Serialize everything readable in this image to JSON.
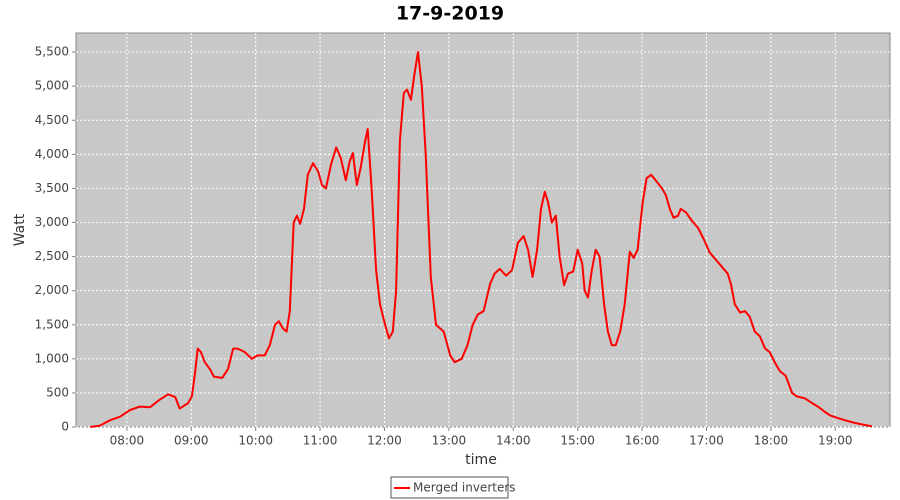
{
  "chart_data": {
    "type": "line",
    "title": "17-9-2019",
    "x_label": "time",
    "y_label": "Watt",
    "x": [
      7.43,
      7.58,
      7.74,
      7.89,
      8.05,
      8.2,
      8.36,
      8.51,
      8.64,
      8.75,
      8.82,
      8.9,
      8.95,
      9.01,
      9.06,
      9.1,
      9.15,
      9.21,
      9.29,
      9.35,
      9.48,
      9.57,
      9.65,
      9.72,
      9.83,
      9.94,
      10.03,
      10.14,
      10.22,
      10.3,
      10.36,
      10.42,
      10.48,
      10.53,
      10.59,
      10.64,
      10.69,
      10.75,
      10.81,
      10.89,
      10.97,
      11.03,
      11.09,
      11.17,
      11.25,
      11.32,
      11.4,
      11.46,
      11.51,
      11.57,
      11.63,
      11.7,
      11.74,
      11.8,
      11.87,
      11.93,
      12.01,
      12.07,
      12.13,
      12.18,
      12.24,
      12.3,
      12.35,
      12.41,
      12.47,
      12.52,
      12.58,
      12.64,
      12.72,
      12.8,
      12.86,
      12.92,
      13.02,
      13.09,
      13.2,
      13.29,
      13.37,
      13.45,
      13.54,
      13.64,
      13.71,
      13.79,
      13.89,
      13.98,
      14.07,
      14.16,
      14.23,
      14.3,
      14.37,
      14.43,
      14.49,
      14.54,
      14.6,
      14.66,
      14.72,
      14.79,
      14.85,
      14.93,
      15.0,
      15.07,
      15.11,
      15.16,
      15.22,
      15.28,
      15.34,
      15.41,
      15.47,
      15.53,
      15.59,
      15.66,
      15.73,
      15.81,
      15.87,
      15.93,
      16.01,
      16.07,
      16.14,
      16.21,
      16.31,
      16.37,
      16.43,
      16.49,
      16.56,
      16.6,
      16.68,
      16.77,
      16.87,
      16.96,
      17.05,
      17.15,
      17.24,
      17.33,
      17.38,
      17.44,
      17.52,
      17.6,
      17.67,
      17.75,
      17.83,
      17.91,
      17.98,
      18.06,
      18.14,
      18.23,
      18.33,
      18.4,
      18.53,
      18.64,
      18.73,
      18.84,
      18.92,
      19.04,
      19.15,
      19.3,
      19.46,
      19.57
    ],
    "series": [
      {
        "name": "Merged inverters",
        "color": "#ff0000",
        "values": [
          0,
          20,
          100,
          150,
          250,
          300,
          290,
          400,
          480,
          440,
          270,
          320,
          350,
          450,
          800,
          1150,
          1100,
          950,
          850,
          740,
          720,
          850,
          1150,
          1150,
          1100,
          1000,
          1050,
          1050,
          1200,
          1500,
          1550,
          1450,
          1400,
          1700,
          3000,
          3100,
          2980,
          3200,
          3700,
          3870,
          3750,
          3550,
          3500,
          3850,
          4100,
          3950,
          3620,
          3900,
          4020,
          3550,
          3800,
          4200,
          4370,
          3500,
          2300,
          1800,
          1500,
          1300,
          1400,
          2000,
          4200,
          4900,
          4950,
          4800,
          5200,
          5500,
          5000,
          4000,
          2200,
          1500,
          1450,
          1400,
          1050,
          950,
          1000,
          1200,
          1500,
          1650,
          1700,
          2100,
          2250,
          2320,
          2220,
          2300,
          2700,
          2800,
          2600,
          2200,
          2600,
          3200,
          3450,
          3300,
          3000,
          3100,
          2500,
          2080,
          2250,
          2280,
          2600,
          2400,
          2000,
          1900,
          2300,
          2600,
          2500,
          1800,
          1400,
          1200,
          1200,
          1400,
          1800,
          2570,
          2480,
          2600,
          3300,
          3650,
          3700,
          3620,
          3500,
          3400,
          3200,
          3070,
          3100,
          3200,
          3150,
          3030,
          2920,
          2750,
          2560,
          2450,
          2350,
          2250,
          2100,
          1800,
          1680,
          1700,
          1620,
          1400,
          1330,
          1150,
          1100,
          950,
          820,
          750,
          500,
          450,
          420,
          350,
          300,
          220,
          170,
          130,
          100,
          60,
          30,
          10
        ]
      }
    ],
    "xlim": [
      7.21,
      19.85
    ],
    "xticks": [
      {
        "value": 8,
        "label": "08:00"
      },
      {
        "value": 9,
        "label": "09:00"
      },
      {
        "value": 10,
        "label": "10:00"
      },
      {
        "value": 11,
        "label": "11:00"
      },
      {
        "value": 12,
        "label": "12:00"
      },
      {
        "value": 13,
        "label": "13:00"
      },
      {
        "value": 14,
        "label": "14:00"
      },
      {
        "value": 15,
        "label": "15:00"
      },
      {
        "value": 16,
        "label": "16:00"
      },
      {
        "value": 17,
        "label": "17:00"
      },
      {
        "value": 18,
        "label": "18:00"
      },
      {
        "value": 19,
        "label": "19:00"
      }
    ],
    "ylim": [
      0,
      5780
    ],
    "yticks": [
      0,
      500,
      {
        "value": 1000,
        "label": "1,000"
      },
      {
        "value": 1500,
        "label": "1,500"
      },
      {
        "value": 2000,
        "label": "2,000"
      },
      {
        "value": 2500,
        "label": "2,500"
      },
      {
        "value": 3000,
        "label": "3,000"
      },
      {
        "value": 3500,
        "label": "3,500"
      },
      {
        "value": 4000,
        "label": "4,000"
      },
      {
        "value": 4500,
        "label": "4,500"
      },
      {
        "value": 5000,
        "label": "5,000"
      },
      {
        "value": 5500,
        "label": "5,500"
      }
    ],
    "grid": true,
    "legend": "bottom"
  }
}
